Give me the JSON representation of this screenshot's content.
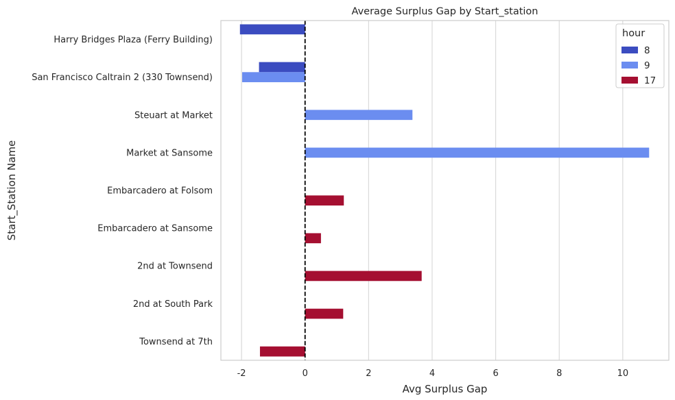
{
  "chart_data": {
    "type": "bar",
    "orientation": "horizontal",
    "title": "Average Surplus Gap by Start_station",
    "xlabel": "Avg Surplus Gap",
    "ylabel": "Start_Station Name",
    "xlim": [
      -2.65,
      11.45
    ],
    "xticks": [
      -2,
      0,
      2,
      4,
      6,
      8,
      10
    ],
    "grid": "vertical",
    "reference_line": {
      "x": 0,
      "style": "dashed",
      "color": "#000000"
    },
    "categories": [
      "Harry Bridges Plaza (Ferry Building)",
      "San Francisco Caltrain 2 (330 Townsend)",
      "Steuart at Market",
      "Market at Sansome",
      "Embarcadero at Folsom",
      "Embarcadero at Sansome",
      "2nd at Townsend",
      "2nd at South Park",
      "Townsend at 7th"
    ],
    "legend": {
      "title": "hour",
      "placement": "top-right"
    },
    "series": [
      {
        "name": "8",
        "color": "#3b4cc0",
        "values": [
          -2.05,
          -1.45,
          null,
          null,
          null,
          null,
          null,
          null,
          null
        ]
      },
      {
        "name": "9",
        "color": "#6b8df0",
        "values": [
          null,
          -1.98,
          3.38,
          10.83,
          null,
          null,
          null,
          null,
          null
        ]
      },
      {
        "name": "17",
        "color": "#a50f31",
        "values": [
          null,
          null,
          null,
          null,
          1.22,
          0.5,
          3.67,
          1.2,
          -1.42
        ]
      }
    ]
  }
}
